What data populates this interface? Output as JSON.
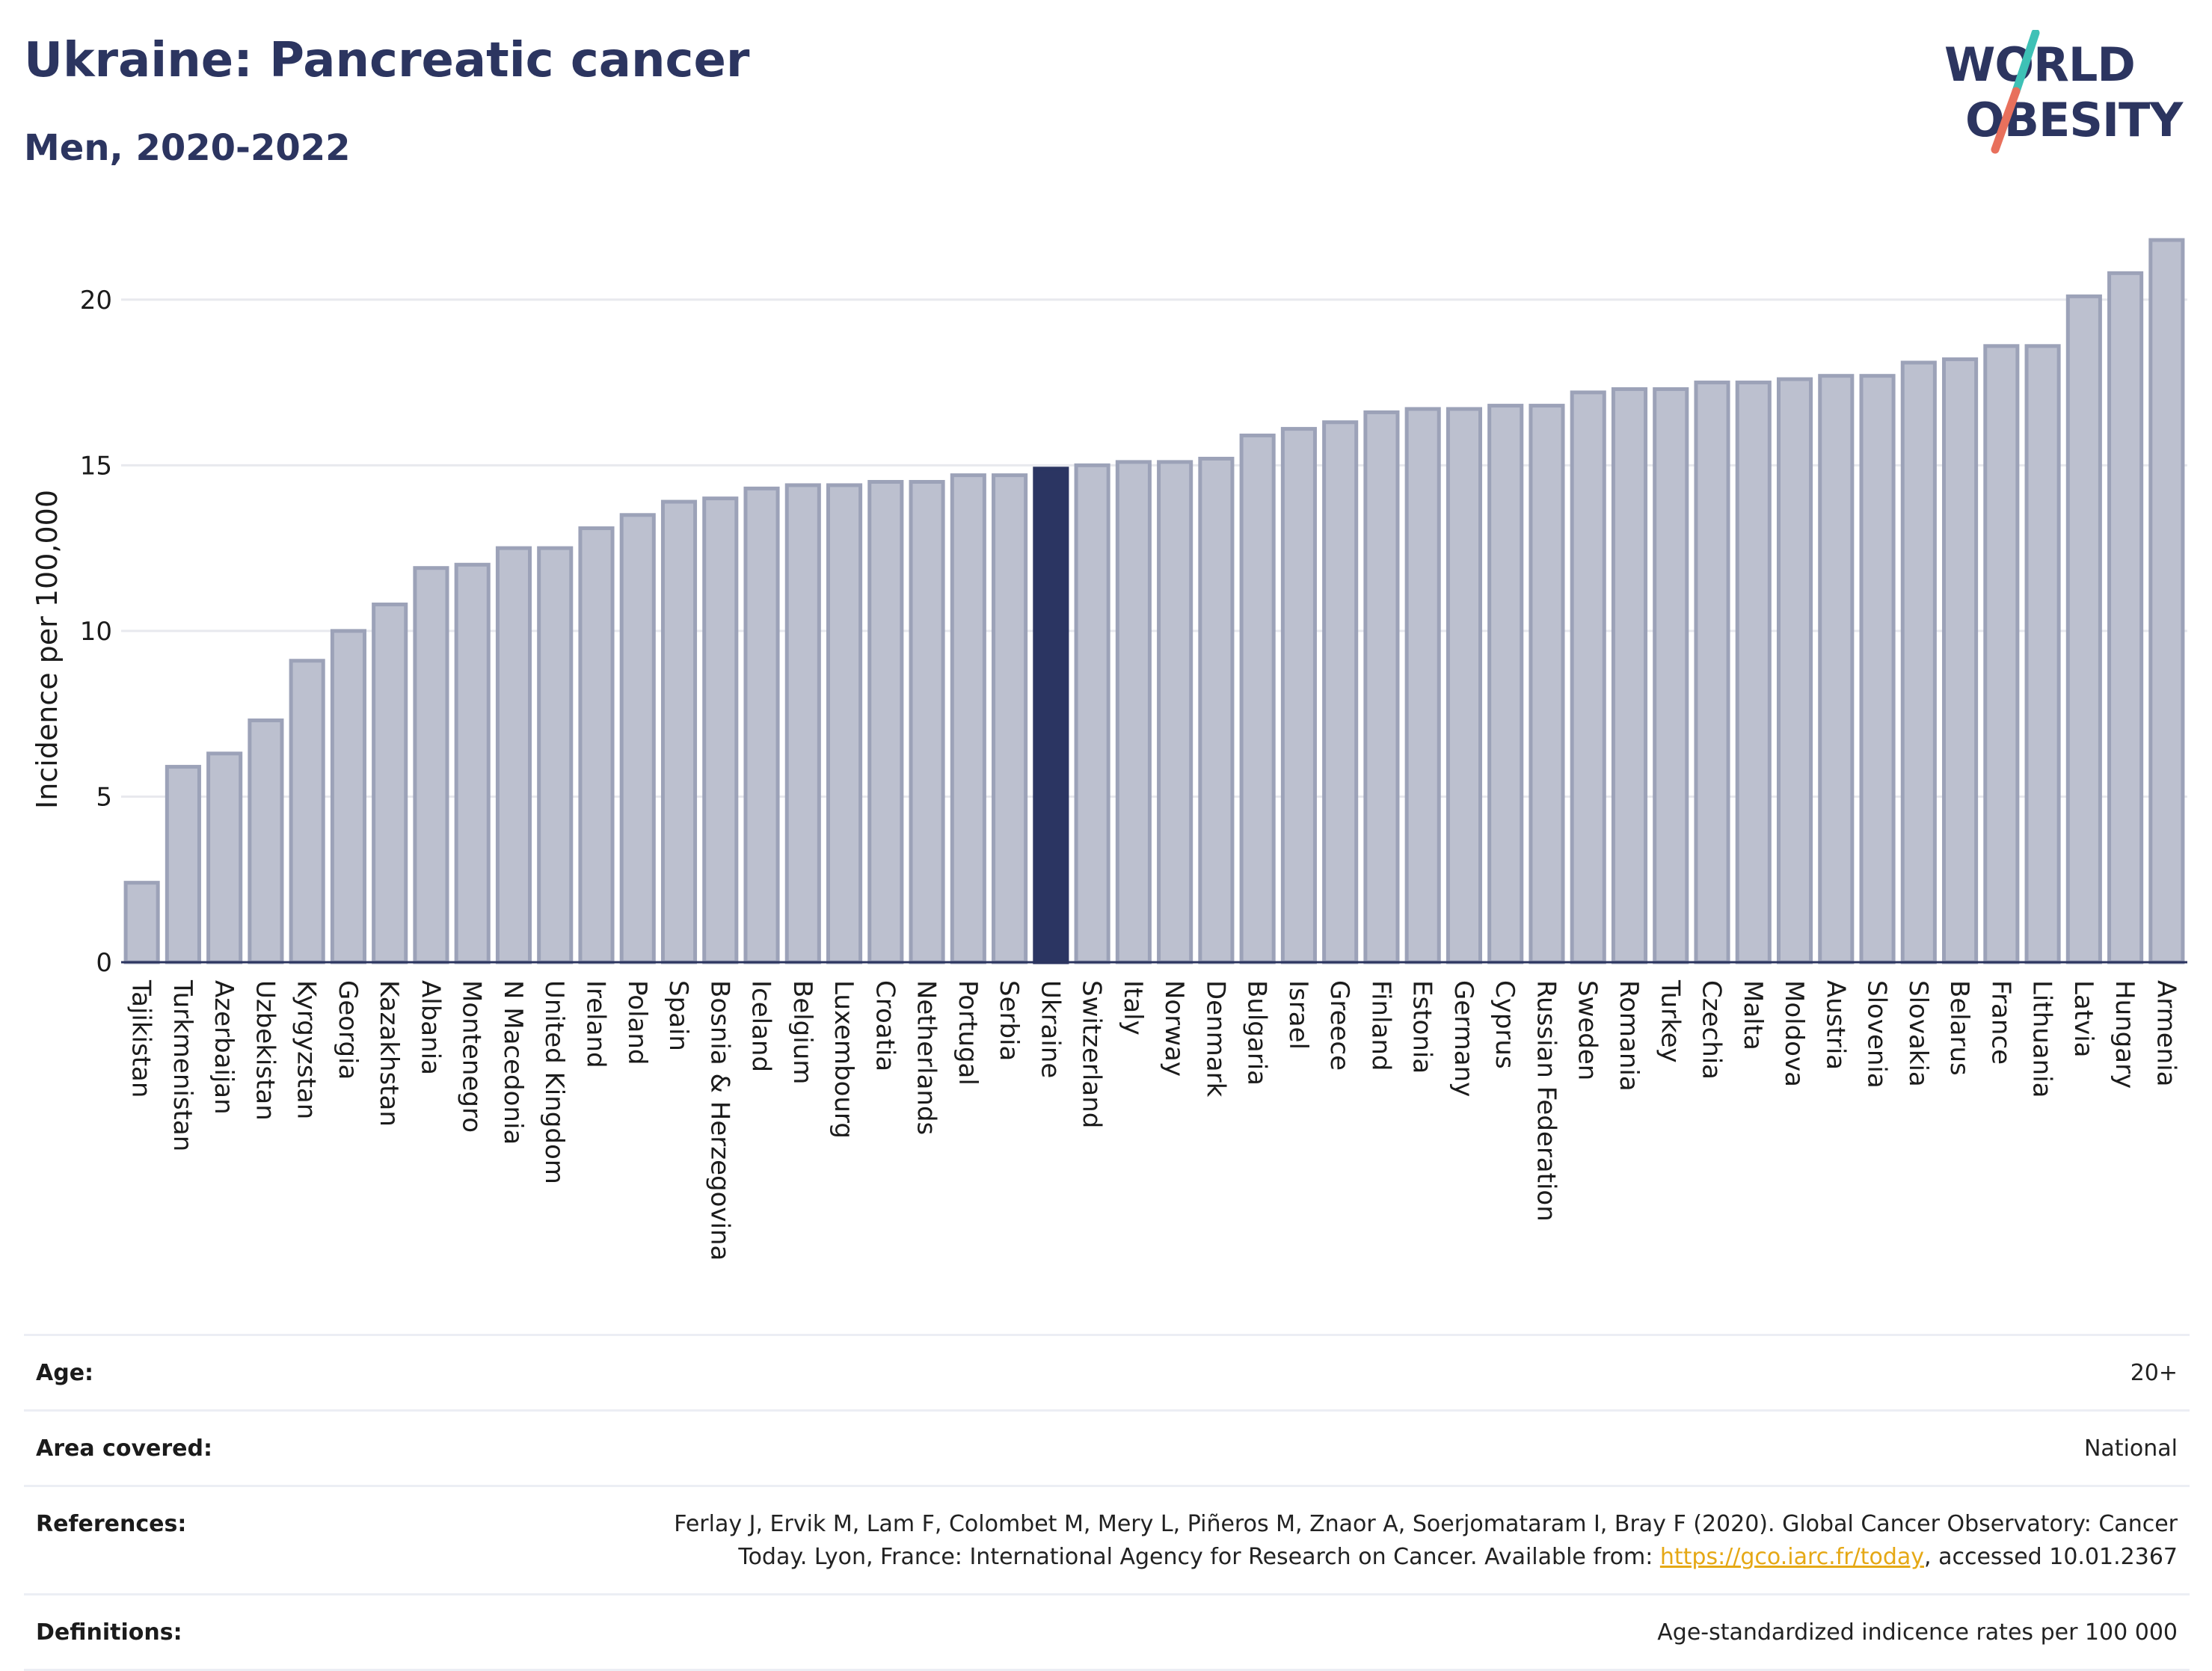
{
  "header": {
    "title": "Ukraine: Pancreatic cancer",
    "subtitle": "Men, 2020-2022"
  },
  "logo": {
    "line1": "WORLD",
    "line2": "OBESITY",
    "text_color": "#2c3560",
    "slash_colors": [
      "#3ec1b6",
      "#e8705c"
    ]
  },
  "colors": {
    "bar": "#bcc0cf",
    "bar_border": "#9ca2b8",
    "highlight": "#2b3562",
    "grid": "#e8e9ee",
    "axis": "#2c3560"
  },
  "chart_data": {
    "type": "bar",
    "ylabel": "Incidence per 100,000",
    "ylim": [
      0,
      22.5
    ],
    "yticks": [
      0,
      5,
      10,
      15,
      20
    ],
    "grid": true,
    "highlight": "Ukraine",
    "categories": [
      "Tajikistan",
      "Turkmenistan",
      "Azerbaijan",
      "Uzbekistan",
      "Kyrgyzstan",
      "Georgia",
      "Kazakhstan",
      "Albania",
      "Montenegro",
      "N Macedonia",
      "United Kingdom",
      "Ireland",
      "Poland",
      "Spain",
      "Bosnia & Herzegovina",
      "Iceland",
      "Belgium",
      "Luxembourg",
      "Croatia",
      "Netherlands",
      "Portugal",
      "Serbia",
      "Ukraine",
      "Switzerland",
      "Italy",
      "Norway",
      "Denmark",
      "Bulgaria",
      "Israel",
      "Greece",
      "Finland",
      "Estonia",
      "Germany",
      "Cyprus",
      "Russian Federation",
      "Sweden",
      "Romania",
      "Turkey",
      "Czechia",
      "Malta",
      "Moldova",
      "Austria",
      "Slovenia",
      "Slovakia",
      "Belarus",
      "France",
      "Lithuania",
      "Latvia",
      "Hungary",
      "Armenia"
    ],
    "values": [
      2.4,
      5.9,
      6.3,
      7.3,
      9.1,
      10.0,
      10.8,
      11.9,
      12.0,
      12.5,
      12.5,
      13.1,
      13.5,
      13.9,
      14.0,
      14.3,
      14.4,
      14.4,
      14.5,
      14.5,
      14.7,
      14.7,
      14.9,
      15.0,
      15.1,
      15.1,
      15.2,
      15.9,
      16.1,
      16.3,
      16.6,
      16.7,
      16.7,
      16.8,
      16.8,
      17.2,
      17.3,
      17.3,
      17.5,
      17.5,
      17.6,
      17.7,
      17.7,
      18.1,
      18.2,
      18.6,
      18.6,
      20.1,
      20.8,
      21.8
    ]
  },
  "meta": {
    "age_label": "Age:",
    "age_value": "20+",
    "area_label": "Area covered:",
    "area_value": "National",
    "references_label": "References:",
    "references_text": "Ferlay J, Ervik M, Lam F, Colombet M, Mery L, Piñeros M, Znaor A, Soerjomataram I, Bray F (2020). Global Cancer Observatory: Cancer Today. Lyon, France: International Agency for Research on Cancer. Available from: ",
    "references_link": "https://gco.iarc.fr/today",
    "references_suffix": ", accessed 10.01.2367",
    "definitions_label": "Definitions:",
    "definitions_value": "Age-standardized indicence rates per 100 000"
  }
}
